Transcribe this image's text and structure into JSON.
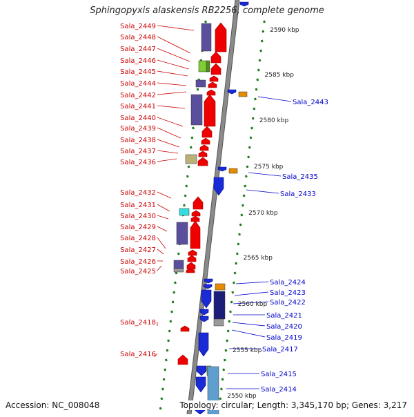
{
  "title": "Sphingopyxis alaskensis RB2256, complete genome",
  "accession": "Accession: NC_008048",
  "topology": "Topology: circular; Length: 3,345,170 bp; Genes: 3,217",
  "colors": {
    "left_label": "#cc0000",
    "right_label": "#0000cc",
    "forward_gene": "#ee0000",
    "reverse_gene": "#1a2bd6",
    "tick": "#1a7a1a",
    "backbone": "#8a8a8a",
    "cog_purple": "#5a4f9c",
    "cog_orange": "#e68a00",
    "cog_green": "#7fcc33",
    "cog_cyan": "#33dddd",
    "cog_khaki": "#b9b07a",
    "cog_navy": "#1c1f7a",
    "cog_lightblue": "#5f9fcf",
    "cog_grey": "#9a9a9a"
  },
  "kbp_labels": [
    "2590 kbp",
    "2585 kbp",
    "2580 kbp",
    "2575 kbp",
    "2570 kbp",
    "2565 kbp",
    "2560 kbp",
    "2555 kbp",
    "2550 kbp"
  ],
  "left_genes": [
    "Sala_2449",
    "Sala_2448",
    "Sala_2447",
    "Sala_2446",
    "Sala_2445",
    "Sala_2444",
    "Sala_2442",
    "Sala_2441",
    "Sala_2440",
    "Sala_2439",
    "Sala_2438",
    "Sala_2437",
    "Sala_2436",
    "Sala_2432",
    "Sala_2431",
    "Sala_2430",
    "Sala_2429",
    "Sala_2428",
    "Sala_2427",
    "Sala_2426",
    "Sala_2425",
    "Sala_2418",
    "Sala_2416"
  ],
  "right_genes": [
    "Sala_2443",
    "Sala_2435",
    "Sala_2433",
    "Sala_2424",
    "Sala_2423",
    "Sala_2422",
    "Sala_2421",
    "Sala_2420",
    "Sala_2419",
    "Sala_2417",
    "Sala_2415",
    "Sala_2414"
  ]
}
